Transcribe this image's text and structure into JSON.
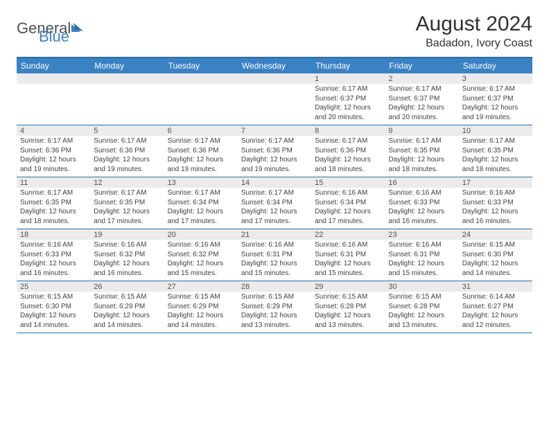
{
  "logo": {
    "text1": "General",
    "text2": "Blue"
  },
  "title": "August 2024",
  "location": "Badadon, Ivory Coast",
  "colors": {
    "header_bg": "#3b82c4",
    "border": "#2a6fa8",
    "daynum_bg": "#ebebeb",
    "text": "#404040"
  },
  "days_of_week": [
    "Sunday",
    "Monday",
    "Tuesday",
    "Wednesday",
    "Thursday",
    "Friday",
    "Saturday"
  ],
  "weeks": [
    [
      {
        "n": "",
        "sr": "",
        "ss": "",
        "dl": ""
      },
      {
        "n": "",
        "sr": "",
        "ss": "",
        "dl": ""
      },
      {
        "n": "",
        "sr": "",
        "ss": "",
        "dl": ""
      },
      {
        "n": "",
        "sr": "",
        "ss": "",
        "dl": ""
      },
      {
        "n": "1",
        "sr": "Sunrise: 6:17 AM",
        "ss": "Sunset: 6:37 PM",
        "dl": "Daylight: 12 hours and 20 minutes."
      },
      {
        "n": "2",
        "sr": "Sunrise: 6:17 AM",
        "ss": "Sunset: 6:37 PM",
        "dl": "Daylight: 12 hours and 20 minutes."
      },
      {
        "n": "3",
        "sr": "Sunrise: 6:17 AM",
        "ss": "Sunset: 6:37 PM",
        "dl": "Daylight: 12 hours and 19 minutes."
      }
    ],
    [
      {
        "n": "4",
        "sr": "Sunrise: 6:17 AM",
        "ss": "Sunset: 6:36 PM",
        "dl": "Daylight: 12 hours and 19 minutes."
      },
      {
        "n": "5",
        "sr": "Sunrise: 6:17 AM",
        "ss": "Sunset: 6:36 PM",
        "dl": "Daylight: 12 hours and 19 minutes."
      },
      {
        "n": "6",
        "sr": "Sunrise: 6:17 AM",
        "ss": "Sunset: 6:36 PM",
        "dl": "Daylight: 12 hours and 19 minutes."
      },
      {
        "n": "7",
        "sr": "Sunrise: 6:17 AM",
        "ss": "Sunset: 6:36 PM",
        "dl": "Daylight: 12 hours and 19 minutes."
      },
      {
        "n": "8",
        "sr": "Sunrise: 6:17 AM",
        "ss": "Sunset: 6:36 PM",
        "dl": "Daylight: 12 hours and 18 minutes."
      },
      {
        "n": "9",
        "sr": "Sunrise: 6:17 AM",
        "ss": "Sunset: 6:35 PM",
        "dl": "Daylight: 12 hours and 18 minutes."
      },
      {
        "n": "10",
        "sr": "Sunrise: 6:17 AM",
        "ss": "Sunset: 6:35 PM",
        "dl": "Daylight: 12 hours and 18 minutes."
      }
    ],
    [
      {
        "n": "11",
        "sr": "Sunrise: 6:17 AM",
        "ss": "Sunset: 6:35 PM",
        "dl": "Daylight: 12 hours and 18 minutes."
      },
      {
        "n": "12",
        "sr": "Sunrise: 6:17 AM",
        "ss": "Sunset: 6:35 PM",
        "dl": "Daylight: 12 hours and 17 minutes."
      },
      {
        "n": "13",
        "sr": "Sunrise: 6:17 AM",
        "ss": "Sunset: 6:34 PM",
        "dl": "Daylight: 12 hours and 17 minutes."
      },
      {
        "n": "14",
        "sr": "Sunrise: 6:17 AM",
        "ss": "Sunset: 6:34 PM",
        "dl": "Daylight: 12 hours and 17 minutes."
      },
      {
        "n": "15",
        "sr": "Sunrise: 6:16 AM",
        "ss": "Sunset: 6:34 PM",
        "dl": "Daylight: 12 hours and 17 minutes."
      },
      {
        "n": "16",
        "sr": "Sunrise: 6:16 AM",
        "ss": "Sunset: 6:33 PM",
        "dl": "Daylight: 12 hours and 16 minutes."
      },
      {
        "n": "17",
        "sr": "Sunrise: 6:16 AM",
        "ss": "Sunset: 6:33 PM",
        "dl": "Daylight: 12 hours and 16 minutes."
      }
    ],
    [
      {
        "n": "18",
        "sr": "Sunrise: 6:16 AM",
        "ss": "Sunset: 6:33 PM",
        "dl": "Daylight: 12 hours and 16 minutes."
      },
      {
        "n": "19",
        "sr": "Sunrise: 6:16 AM",
        "ss": "Sunset: 6:32 PM",
        "dl": "Daylight: 12 hours and 16 minutes."
      },
      {
        "n": "20",
        "sr": "Sunrise: 6:16 AM",
        "ss": "Sunset: 6:32 PM",
        "dl": "Daylight: 12 hours and 15 minutes."
      },
      {
        "n": "21",
        "sr": "Sunrise: 6:16 AM",
        "ss": "Sunset: 6:31 PM",
        "dl": "Daylight: 12 hours and 15 minutes."
      },
      {
        "n": "22",
        "sr": "Sunrise: 6:16 AM",
        "ss": "Sunset: 6:31 PM",
        "dl": "Daylight: 12 hours and 15 minutes."
      },
      {
        "n": "23",
        "sr": "Sunrise: 6:16 AM",
        "ss": "Sunset: 6:31 PM",
        "dl": "Daylight: 12 hours and 15 minutes."
      },
      {
        "n": "24",
        "sr": "Sunrise: 6:15 AM",
        "ss": "Sunset: 6:30 PM",
        "dl": "Daylight: 12 hours and 14 minutes."
      }
    ],
    [
      {
        "n": "25",
        "sr": "Sunrise: 6:15 AM",
        "ss": "Sunset: 6:30 PM",
        "dl": "Daylight: 12 hours and 14 minutes."
      },
      {
        "n": "26",
        "sr": "Sunrise: 6:15 AM",
        "ss": "Sunset: 6:29 PM",
        "dl": "Daylight: 12 hours and 14 minutes."
      },
      {
        "n": "27",
        "sr": "Sunrise: 6:15 AM",
        "ss": "Sunset: 6:29 PM",
        "dl": "Daylight: 12 hours and 14 minutes."
      },
      {
        "n": "28",
        "sr": "Sunrise: 6:15 AM",
        "ss": "Sunset: 6:29 PM",
        "dl": "Daylight: 12 hours and 13 minutes."
      },
      {
        "n": "29",
        "sr": "Sunrise: 6:15 AM",
        "ss": "Sunset: 6:28 PM",
        "dl": "Daylight: 12 hours and 13 minutes."
      },
      {
        "n": "30",
        "sr": "Sunrise: 6:15 AM",
        "ss": "Sunset: 6:28 PM",
        "dl": "Daylight: 12 hours and 13 minutes."
      },
      {
        "n": "31",
        "sr": "Sunrise: 6:14 AM",
        "ss": "Sunset: 6:27 PM",
        "dl": "Daylight: 12 hours and 12 minutes."
      }
    ]
  ]
}
